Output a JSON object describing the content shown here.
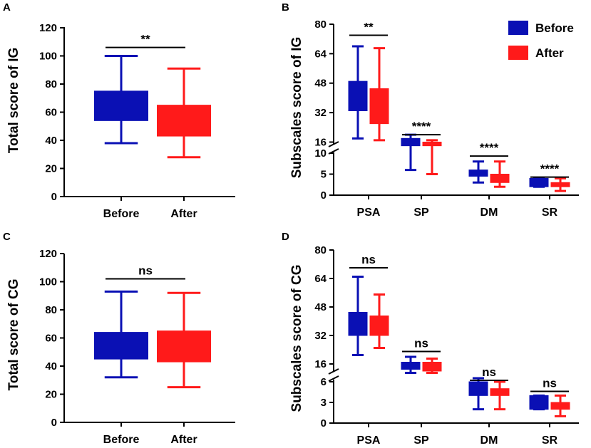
{
  "colors": {
    "before": "#0a10b4",
    "after": "#ff1a1a",
    "axis": "#000000"
  },
  "legend": {
    "before": "Before",
    "after": "After"
  },
  "chart_data": [
    {
      "panel": "A",
      "type": "box",
      "ylabel": "Total score of IG",
      "ylim": [
        0,
        120
      ],
      "yticks": [
        "0",
        "20",
        "40",
        "60",
        "80",
        "100",
        "120"
      ],
      "categories": [
        "Before",
        "After"
      ],
      "boxes": [
        {
          "group": "before",
          "min": 38,
          "q1": 54,
          "median": 54,
          "q3": 75,
          "max": 100
        },
        {
          "group": "after",
          "min": 28,
          "q1": 43,
          "median": 43,
          "q3": 65,
          "max": 91
        }
      ],
      "significance": [
        {
          "label": "**",
          "from": 0,
          "to": 1,
          "y": 106
        }
      ]
    },
    {
      "panel": "B",
      "type": "box",
      "ylabel": "Subscales score of IG",
      "broken_axis": true,
      "lower_range": [
        0,
        10
      ],
      "upper_range": [
        10,
        80
      ],
      "yticks_lower": [
        "0",
        "5",
        "10"
      ],
      "yticks_upper": [
        "16",
        "32",
        "48",
        "64",
        "80"
      ],
      "categories": [
        "PSA",
        "SP",
        "DM",
        "SR"
      ],
      "boxes": [
        {
          "cat": 0,
          "group": "before",
          "min": 18,
          "q1": 33,
          "median": 33,
          "q3": 49,
          "max": 68
        },
        {
          "cat": 0,
          "group": "after",
          "min": 17,
          "q1": 26,
          "median": 26,
          "q3": 45,
          "max": 67
        },
        {
          "cat": 1,
          "group": "before",
          "min": 6,
          "q1": 14,
          "median": 14,
          "q3": 18,
          "max": 20
        },
        {
          "cat": 1,
          "group": "after",
          "min": 5,
          "q1": 14,
          "median": 14,
          "q3": 16,
          "max": 17
        },
        {
          "cat": 2,
          "group": "before",
          "min": 3,
          "q1": 4.5,
          "median": 4.5,
          "q3": 6,
          "max": 8
        },
        {
          "cat": 2,
          "group": "after",
          "min": 2,
          "q1": 3,
          "median": 3,
          "q3": 5,
          "max": 8
        },
        {
          "cat": 3,
          "group": "before",
          "min": 2,
          "q1": 2,
          "median": 2,
          "q3": 4,
          "max": 4
        },
        {
          "cat": 3,
          "group": "after",
          "min": 1,
          "q1": 2,
          "median": 2,
          "q3": 3,
          "max": 4
        }
      ],
      "significance": [
        {
          "label": "**",
          "cat": 0,
          "y": 74
        },
        {
          "label": "****",
          "cat": 1,
          "y": 20
        },
        {
          "label": "****",
          "cat": 2,
          "y": 9.3
        },
        {
          "label": "****",
          "cat": 3,
          "y": 4.3
        }
      ]
    },
    {
      "panel": "C",
      "type": "box",
      "ylabel": "Total score of CG",
      "ylim": [
        0,
        120
      ],
      "yticks": [
        "0",
        "20",
        "40",
        "60",
        "80",
        "100",
        "120"
      ],
      "categories": [
        "Before",
        "After"
      ],
      "boxes": [
        {
          "group": "before",
          "min": 32,
          "q1": 45,
          "median": 45,
          "q3": 64,
          "max": 93
        },
        {
          "group": "after",
          "min": 25,
          "q1": 43,
          "median": 43,
          "q3": 65,
          "max": 92
        }
      ],
      "significance": [
        {
          "label": "ns",
          "from": 0,
          "to": 1,
          "y": 102
        }
      ]
    },
    {
      "panel": "D",
      "type": "box",
      "ylabel": "Subscales score of CG",
      "broken_axis": true,
      "lower_range": [
        0,
        6
      ],
      "upper_range": [
        6,
        80
      ],
      "yticks_lower": [
        "0",
        "3",
        "6"
      ],
      "yticks_upper": [
        "16",
        "32",
        "48",
        "64",
        "80"
      ],
      "categories": [
        "PSA",
        "SP",
        "DM",
        "SR"
      ],
      "boxes": [
        {
          "cat": 0,
          "group": "before",
          "min": 21,
          "q1": 32,
          "median": 32,
          "q3": 45,
          "max": 65
        },
        {
          "cat": 0,
          "group": "after",
          "min": 25,
          "q1": 32,
          "median": 32,
          "q3": 43,
          "max": 55
        },
        {
          "cat": 1,
          "group": "before",
          "min": 11,
          "q1": 13,
          "median": 13,
          "q3": 17,
          "max": 20
        },
        {
          "cat": 1,
          "group": "after",
          "min": 11,
          "q1": 12,
          "median": 12,
          "q3": 17,
          "max": 19
        },
        {
          "cat": 2,
          "group": "before",
          "min": 2,
          "q1": 4,
          "median": 4,
          "q3": 6,
          "max": 8
        },
        {
          "cat": 2,
          "group": "after",
          "min": 2,
          "q1": 4,
          "median": 4,
          "q3": 5,
          "max": 6
        },
        {
          "cat": 3,
          "group": "before",
          "min": 2,
          "q1": 2,
          "median": 2,
          "q3": 4,
          "max": 4
        },
        {
          "cat": 3,
          "group": "after",
          "min": 1,
          "q1": 2,
          "median": 2,
          "q3": 3,
          "max": 4
        }
      ],
      "significance": [
        {
          "label": "ns",
          "cat": 0,
          "y": 70
        },
        {
          "label": "ns",
          "cat": 1,
          "y": 23
        },
        {
          "label": "ns",
          "cat": 2,
          "y": 6.8
        },
        {
          "label": "ns",
          "cat": 3,
          "y": 4.6
        }
      ]
    }
  ]
}
